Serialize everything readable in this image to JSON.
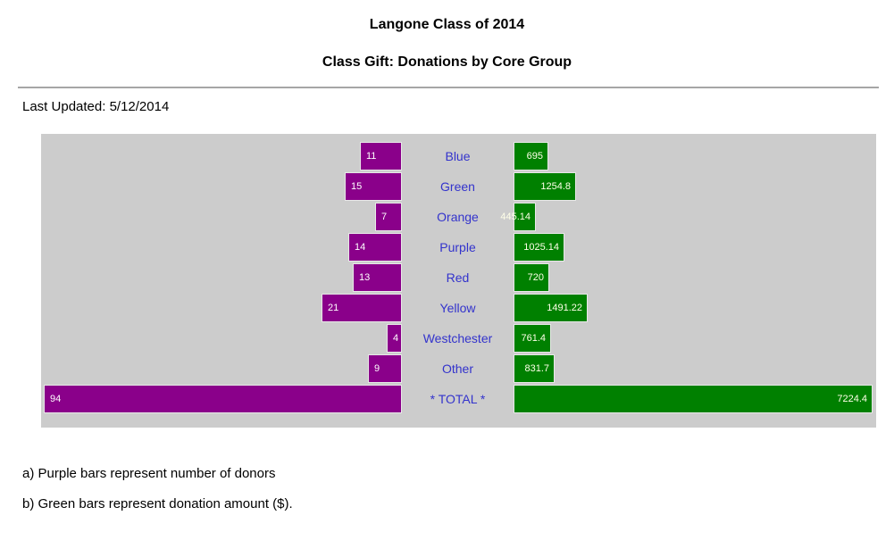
{
  "header": {
    "title": "Langone Class of 2014",
    "subtitle": "Class Gift: Donations by Core Group",
    "last_updated": "Last Updated: 5/12/2014"
  },
  "footnotes": {
    "a": "a) Purple bars represent number of donors",
    "b": "b) Green bars represent donation amount ($)."
  },
  "colors": {
    "panel_background": "#cccccc",
    "donor_bar": "#8a008a",
    "donation_bar": "#008000",
    "bar_border": "#e8e8e8",
    "category_label": "#3333cc",
    "donor_value_text": "#ffffff",
    "donation_value_text": "#ffffe8"
  },
  "chart_data": {
    "type": "bar",
    "layout": "bidirectional-horizontal",
    "title": "Class Gift: Donations by Core Group",
    "categories": [
      "Blue",
      "Green",
      "Orange",
      "Purple",
      "Red",
      "Yellow",
      "Westchester",
      "Other",
      "* TOTAL *"
    ],
    "series": [
      {
        "name": "Number of donors",
        "side": "left",
        "color": "#8a008a",
        "values": [
          11,
          15,
          7,
          14,
          13,
          21,
          4,
          9,
          94
        ]
      },
      {
        "name": "Donation amount ($)",
        "side": "right",
        "color": "#008000",
        "values": [
          695,
          1254.8,
          445.14,
          1025.14,
          720,
          1491.22,
          761.4,
          831.7,
          7224.4
        ]
      }
    ],
    "value_labels": {
      "donors": [
        "11",
        "15",
        "7",
        "14",
        "13",
        "21",
        "4",
        "9",
        "94"
      ],
      "donations": [
        "695",
        "1254.8",
        "445.14",
        "1025.14",
        "720",
        "1491.22",
        "761.4",
        "831.7",
        "7224.4"
      ]
    },
    "legend_position": "none",
    "grid": false
  }
}
